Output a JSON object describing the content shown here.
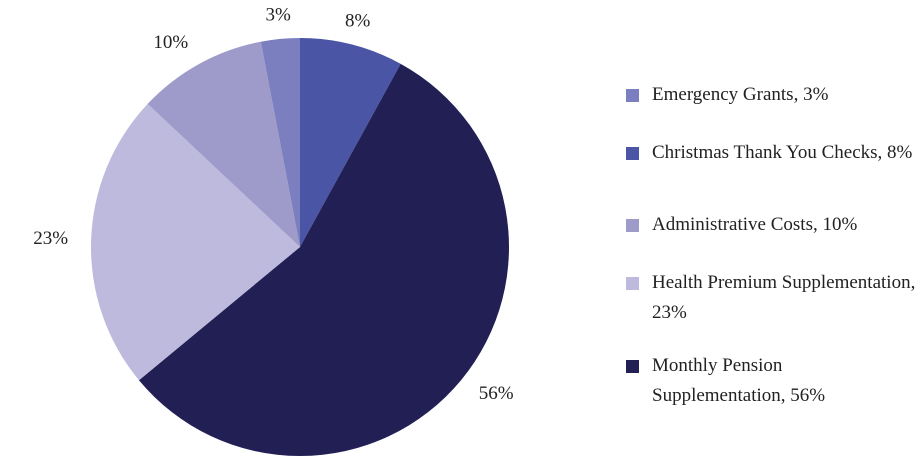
{
  "chart_data": {
    "type": "pie",
    "categories": [
      "Christmas Thank You Checks, 8%",
      "Monthly Pension Supplementation, 56%",
      "Health Premium Supplementation, 23%",
      "Administrative Costs, 10%",
      "Emergency Grants, 3%"
    ],
    "values": [
      8,
      56,
      23,
      10,
      3
    ],
    "value_labels": [
      "8%",
      "56%",
      "23%",
      "10%",
      "3%"
    ],
    "colors": [
      "#4a55a5",
      "#221f55",
      "#bdbadd",
      "#9e9bcb",
      "#7b7fbf"
    ],
    "legend": "right"
  }
}
